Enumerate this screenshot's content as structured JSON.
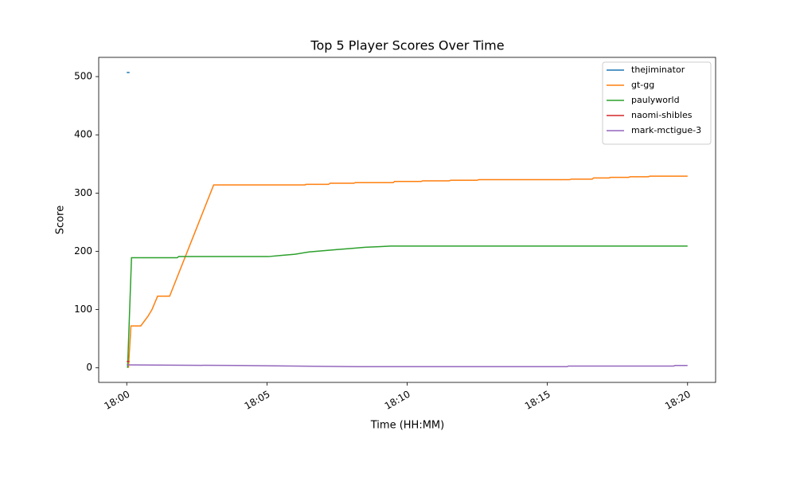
{
  "chart_data": {
    "type": "line",
    "title": "Top 5 Player Scores Over Time",
    "x_label": "Time (HH:MM)",
    "y_label": "Score",
    "xlim": [
      -1,
      21
    ],
    "ylim": [
      -25,
      533
    ],
    "xticks": [
      {
        "value": 0,
        "label": "18:00"
      },
      {
        "value": 5,
        "label": "18:05"
      },
      {
        "value": 10,
        "label": "18:10"
      },
      {
        "value": 15,
        "label": "18:15"
      },
      {
        "value": 20,
        "label": "18:20"
      }
    ],
    "yticks": [
      0,
      100,
      200,
      300,
      400,
      500
    ],
    "grid": false,
    "legend": "upper right",
    "series": [
      {
        "name": "thejiminator",
        "color": "#1f77b4",
        "x": [
          0.0,
          0.1
        ],
        "values": [
          507,
          507
        ]
      },
      {
        "name": "gt-gg",
        "color": "#ff7f0e",
        "x": [
          0.06,
          0.15,
          0.5,
          0.75,
          0.9,
          1.1,
          1.53,
          3.1,
          6.35,
          6.4,
          7.2,
          7.25,
          8.1,
          8.15,
          9.5,
          9.55,
          10.5,
          10.55,
          11.5,
          11.55,
          12.5,
          12.55,
          15.8,
          15.85,
          16.6,
          16.65,
          17.2,
          17.25,
          17.9,
          17.95,
          18.6,
          18.65,
          20.0
        ],
        "values": [
          0,
          72,
          72,
          88,
          100,
          123,
          123,
          314,
          314,
          315,
          315,
          317,
          317,
          318,
          318,
          320,
          320,
          321,
          321,
          322,
          322,
          323,
          323,
          324,
          324,
          326,
          326,
          327,
          327,
          328,
          328,
          329,
          329
        ]
      },
      {
        "name": "paulyworld",
        "color": "#2ca02c",
        "x": [
          0.03,
          0.17,
          1.8,
          1.85,
          5.05,
          5.5,
          6.0,
          6.5,
          7.0,
          7.5,
          8.0,
          8.5,
          9.0,
          9.4,
          20.0
        ],
        "values": [
          0,
          189,
          189,
          191,
          191,
          193,
          195,
          199,
          201,
          203,
          205,
          207,
          208,
          209,
          209
        ]
      },
      {
        "name": "naomi-shibles",
        "color": "#d62728",
        "x": [
          0.0,
          0.1
        ],
        "values": [
          11,
          11
        ]
      },
      {
        "name": "mark-mctigue-3",
        "color": "#9467bd",
        "x": [
          0.0,
          4.0,
          8.25,
          15.7,
          15.75,
          19.5,
          19.55,
          20.0
        ],
        "values": [
          5,
          4,
          2,
          2,
          3,
          3,
          4,
          4
        ]
      }
    ]
  }
}
